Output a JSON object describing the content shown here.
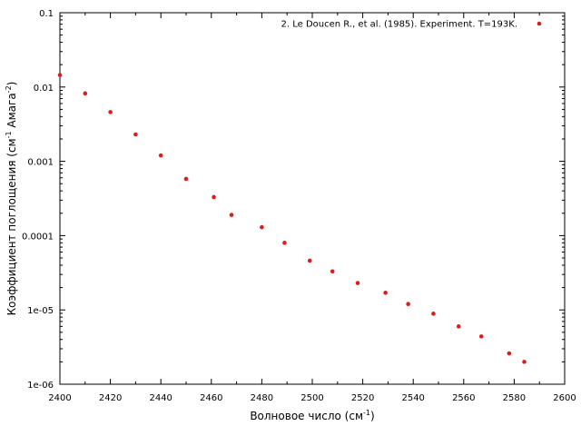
{
  "chart_data": {
    "type": "scatter",
    "xlabel": "Волновое число (см",
    "xlabel_sup": "-1",
    "xlabel_end": ")",
    "ylabel": "Коэффициент поглощения (см",
    "ylabel_sup1": "-1",
    "ylabel_mid": " Амага",
    "ylabel_sup2": "-2",
    "ylabel_end": ")",
    "xlim": [
      2400,
      2600
    ],
    "ylim": [
      1e-06,
      0.1
    ],
    "y_scale": "log",
    "x_ticks": [
      2400,
      2420,
      2440,
      2460,
      2480,
      2500,
      2520,
      2540,
      2560,
      2580,
      2600
    ],
    "y_ticks": [
      {
        "value": 1e-06,
        "label": "1e-06"
      },
      {
        "value": 1e-05,
        "label": "1e-05"
      },
      {
        "value": 0.0001,
        "label": "0.0001"
      },
      {
        "value": 0.001,
        "label": "0.001"
      },
      {
        "value": 0.01,
        "label": "0.01"
      },
      {
        "value": 0.1,
        "label": "0.1"
      }
    ],
    "grid": false,
    "legend_position": "top-right",
    "series": [
      {
        "name": "2. Le Doucen R., et al. (1985). Experiment. T=193K.",
        "color": "#dd1c1c",
        "x": [
          2400,
          2410,
          2420,
          2430,
          2440,
          2450,
          2461,
          2468,
          2480,
          2489,
          2499,
          2508,
          2518,
          2529,
          2538,
          2548,
          2558,
          2567,
          2578,
          2584
        ],
        "y": [
          0.0145,
          0.0082,
          0.0046,
          0.0023,
          0.0012,
          0.00058,
          0.00033,
          0.00019,
          0.00013,
          8e-05,
          4.6e-05,
          3.3e-05,
          2.3e-05,
          1.7e-05,
          1.2e-05,
          8.9e-06,
          6e-06,
          4.4e-06,
          2.6e-06,
          2e-06
        ]
      }
    ]
  }
}
